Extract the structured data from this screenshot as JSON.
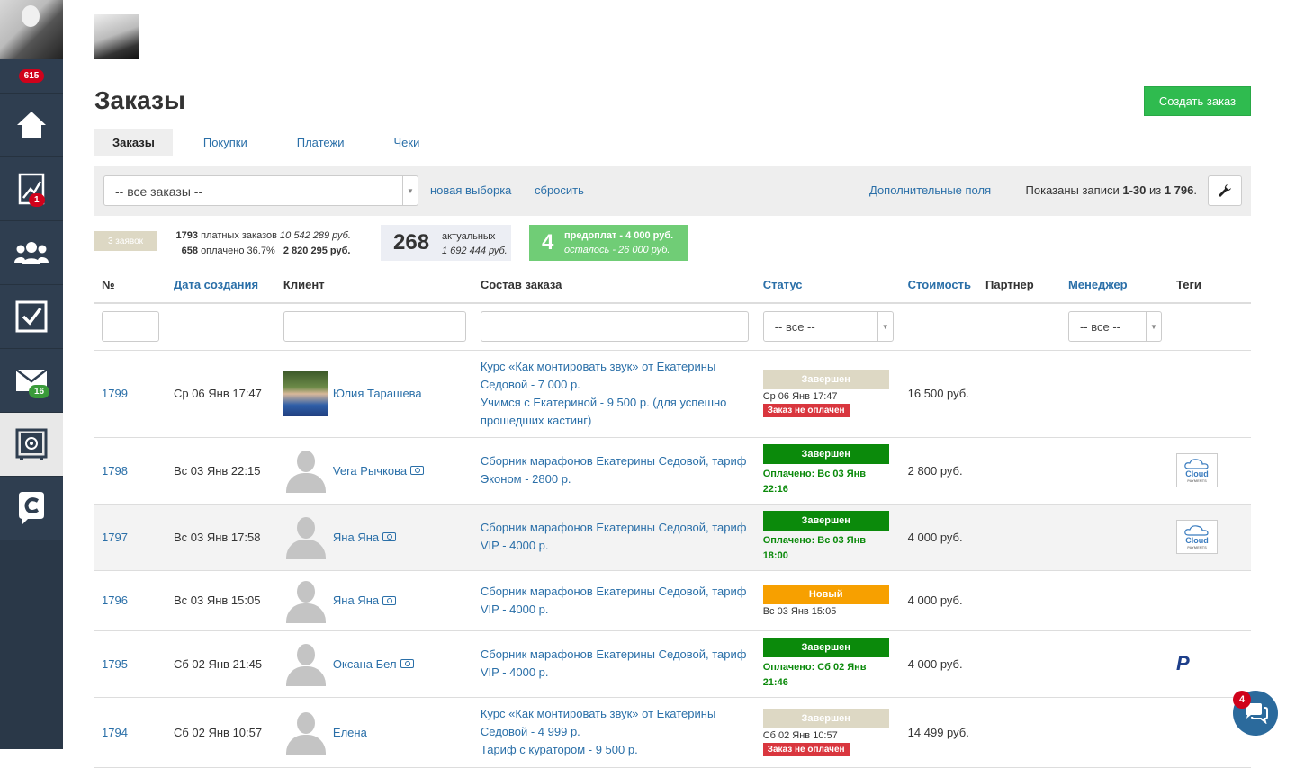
{
  "sidebar": {
    "badge_top": "615",
    "items": [
      {
        "icon": "home-icon"
      },
      {
        "icon": "chart-icon",
        "badge": "1"
      },
      {
        "icon": "users-icon"
      },
      {
        "icon": "tasks-icon"
      },
      {
        "icon": "mail-icon",
        "badge": "16"
      },
      {
        "icon": "settings-icon"
      },
      {
        "icon": "brand-icon"
      }
    ]
  },
  "page": {
    "title": "Заказы",
    "create_button": "Создать заказ"
  },
  "tabs": [
    "Заказы",
    "Покупки",
    "Платежи",
    "Чеки"
  ],
  "filterbar": {
    "select_value": "-- все заказы --",
    "new_selection": "новая выборка",
    "reset": "сбросить",
    "extra_fields": "Дополнительные поля",
    "shown_prefix": "Показаны записи ",
    "shown_range": "1-30",
    "shown_mid": " из ",
    "shown_total": "1 796",
    "shown_suffix": "."
  },
  "stats": {
    "tag": "3 заявок",
    "paid_orders_count": "1793",
    "paid_orders_label": "платных заказов",
    "paid_orders_sum": "10 542 289 руб.",
    "paid_count": "658",
    "paid_label": "оплачено 36.7%",
    "paid_sum": "2 820 295 руб.",
    "actual_count": "268",
    "actual_label": "актуальных",
    "actual_sum": "1 692 444 руб.",
    "prepay_count": "4",
    "prepay_line1": "предоплат - 4 000 руб.",
    "prepay_line2": "осталось - 26 000 руб."
  },
  "table": {
    "headers": {
      "num": "№",
      "date": "Дата создания",
      "client": "Клиент",
      "items": "Состав заказа",
      "status": "Статус",
      "cost": "Стоимость",
      "partner": "Партнер",
      "manager": "Менеджер",
      "tags": "Теги"
    },
    "filter_status": "-- все --",
    "filter_manager": "-- все --",
    "rows": [
      {
        "num": "1799",
        "date": "Ср 06 Янв 17:47",
        "client": "Юлия Тарашева",
        "items": [
          "Курс «Как монтировать звук» от Екатерины Седовой - 7 000 р.",
          "Учимся с Екатериной - 9 500 р. (для успешно прошедших кастинг)"
        ],
        "status": "Завершен",
        "status_sub": "Ср 06 Янв 17:47",
        "unpaid": "Заказ не оплачен",
        "cost": "16 500 руб."
      },
      {
        "num": "1798",
        "date": "Вс 03 Янв 22:15",
        "client": "Vera Рычкова",
        "items": [
          "Сборник марафонов Екатерины Седовой, тариф Эконом - 2800 р."
        ],
        "status": "Завершен",
        "paid": "Оплачено: Вс 03 Янв 22:16",
        "cost": "2 800 руб.",
        "tag": "Cloud"
      },
      {
        "num": "1797",
        "date": "Вс 03 Янв 17:58",
        "client": "Яна Яна",
        "items": [
          "Сборник марафонов Екатерины Седовой, тариф VIP - 4000 р."
        ],
        "status": "Завершен",
        "paid": "Оплачено: Вс 03 Янв 18:00",
        "cost": "4 000 руб.",
        "tag": "Cloud"
      },
      {
        "num": "1796",
        "date": "Вс 03 Янв 15:05",
        "client": "Яна Яна",
        "items": [
          "Сборник марафонов Екатерины Седовой, тариф VIP - 4000 р."
        ],
        "status": "Новый",
        "status_sub": "Вс 03 Янв 15:05",
        "cost": "4 000 руб."
      },
      {
        "num": "1795",
        "date": "Сб 02 Янв 21:45",
        "client": "Оксана Бел",
        "items": [
          "Сборник марафонов Екатерины Седовой, тариф VIP - 4000 р."
        ],
        "status": "Завершен",
        "paid": "Оплачено: Сб 02 Янв 21:46",
        "cost": "4 000 руб.",
        "tag": "P"
      },
      {
        "num": "1794",
        "date": "Сб 02 Янв 10:57",
        "client": "Елена",
        "items": [
          "Курс «Как монтировать звук» от Екатерины Седовой - 4 999 р.",
          "Тариф с куратором - 9 500 р."
        ],
        "status": "Завершен",
        "status_sub": "Сб 02 Янв 10:57",
        "unpaid": "Заказ не оплачен",
        "cost": "14 499 руб."
      }
    ]
  },
  "tag_sub": "PAYMENTS",
  "chat": {
    "badge": "4"
  }
}
